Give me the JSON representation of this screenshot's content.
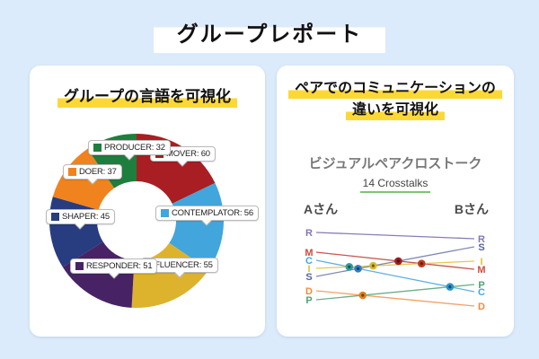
{
  "page": {
    "title": "グループレポート",
    "background_color": "#dcebfb",
    "highlight_yellow": "#fdd835"
  },
  "left_panel": {
    "heading": "グループの言語を可視化"
  },
  "right_panel": {
    "heading_line1": "ペアでのコミュニケーションの",
    "heading_line2": "違いを可視化",
    "subtitle": "ビジュアルペアクロストーク",
    "crosstalk_count": "14 Crosstalks",
    "count_underline_color": "#7cc576",
    "person_a": "Aさん",
    "person_b": "Bさん"
  },
  "chart_data": [
    {
      "type": "pie",
      "subtype": "donut",
      "title": "グループの言語を可視化",
      "direction": "clockwise",
      "start_angle_deg": 0,
      "segments": [
        {
          "name": "MOVER",
          "value": 60,
          "color": "#a91e23",
          "label_chip": true
        },
        {
          "name": "CONTEMPLATOR",
          "value": 56,
          "color": "#42a5dc",
          "label_chip": true
        },
        {
          "name": "INFLUENCER",
          "value": 55,
          "color": "#ddb32d",
          "label_chip": false
        },
        {
          "name": "RESPONDER",
          "value": 51,
          "color": "#472366",
          "label_chip": true
        },
        {
          "name": "SHAPER",
          "value": 45,
          "color": "#283c80",
          "label_chip": true
        },
        {
          "name": "DOER",
          "value": 37,
          "color": "#f0831e",
          "label_chip": true
        },
        {
          "name": "PRODUCER",
          "value": 32,
          "color": "#1e7e3e",
          "label_chip": true
        }
      ]
    },
    {
      "type": "slopegraph",
      "title": "ビジュアルペアクロストーク",
      "crosstalks": 14,
      "left_label": "Aさん",
      "right_label": "Bさん",
      "left_order": [
        "R",
        "M",
        "C",
        "I",
        "S",
        "D",
        "P"
      ],
      "right_order": [
        "R",
        "S",
        "I",
        "M",
        "P",
        "C",
        "D"
      ],
      "traits": [
        {
          "code": "R",
          "color": "#8675b5",
          "line_color": "#8b7cb5"
        },
        {
          "code": "M",
          "color": "#d04a3e",
          "line_color": "#c4564e"
        },
        {
          "code": "C",
          "color": "#45a6e0",
          "line_color": "#5fb0e4"
        },
        {
          "code": "I",
          "color": "#e2c235",
          "line_color": "#e4ca4a"
        },
        {
          "code": "S",
          "color": "#53639f",
          "line_color": "#8089b4"
        },
        {
          "code": "D",
          "color": "#f08a3e",
          "line_color": "#f2a268"
        },
        {
          "code": "P",
          "color": "#4da377",
          "line_color": "#6cae8a"
        }
      ],
      "crossing_dot_colors": {
        "C-I": "#2e9e98",
        "C-S": "#2d7fc4",
        "I-S": "#d9b92e",
        "M-S": "#9e1f24",
        "I-M": "#c03a20",
        "C-P": "#2d93cf",
        "D-P": "#e0821f"
      }
    }
  ]
}
